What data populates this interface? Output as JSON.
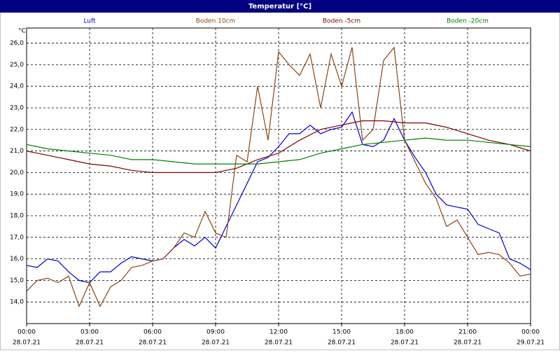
{
  "chart_data": {
    "type": "line",
    "title": "Temperatur [°C]",
    "y_unit": "°C",
    "x": [
      0,
      0.5,
      1,
      1.5,
      2,
      2.5,
      3,
      3.5,
      4,
      4.5,
      5,
      5.5,
      6,
      6.5,
      7,
      7.5,
      8,
      8.5,
      9,
      9.5,
      10,
      10.5,
      11,
      11.5,
      12,
      12.5,
      13,
      13.5,
      14,
      14.5,
      15,
      15.5,
      16,
      16.5,
      17,
      17.5,
      18,
      18.5,
      19,
      19.5,
      20,
      20.5,
      21,
      21.5,
      22,
      22.5,
      23,
      23.5,
      24
    ],
    "series": [
      {
        "name": "Luft",
        "color": "#0000cc",
        "values": [
          15.7,
          15.6,
          16.0,
          15.9,
          15.4,
          15.0,
          14.9,
          15.4,
          15.4,
          15.8,
          16.1,
          16.0,
          15.9,
          16.0,
          16.5,
          16.9,
          16.6,
          17.0,
          16.5,
          17.5,
          18.5,
          19.5,
          20.5,
          20.7,
          21.2,
          21.8,
          21.8,
          22.2,
          21.8,
          22.0,
          22.1,
          22.8,
          21.3,
          21.2,
          21.5,
          22.5,
          21.5,
          20.7,
          20.0,
          19.0,
          18.5,
          18.4,
          18.3,
          17.6,
          17.4,
          17.2,
          16.0,
          15.8,
          15.5
        ]
      },
      {
        "name": "Boden 10cm",
        "color": "#8b4513",
        "values": [
          14.5,
          15.0,
          15.1,
          14.9,
          15.2,
          13.8,
          14.9,
          13.8,
          14.7,
          15.0,
          15.6,
          15.7,
          15.9,
          16.0,
          16.5,
          17.2,
          17.0,
          18.2,
          17.2,
          17.0,
          20.8,
          20.5,
          24.0,
          21.5,
          25.6,
          25.0,
          24.5,
          25.5,
          23.0,
          25.5,
          24.0,
          25.8,
          21.5,
          22.0,
          25.2,
          25.8,
          21.5,
          20.5,
          19.5,
          18.8,
          17.5,
          17.8,
          17.0,
          16.2,
          16.3,
          16.2,
          15.8,
          15.2,
          15.3
        ]
      },
      {
        "name": "Boden -5cm",
        "color": "#800000",
        "values": [
          21.0,
          20.9,
          20.8,
          20.7,
          20.6,
          20.5,
          20.4,
          20.35,
          20.3,
          20.2,
          20.1,
          20.05,
          20.0,
          20.0,
          20.0,
          20.0,
          20.0,
          20.0,
          20.0,
          20.1,
          20.2,
          20.4,
          20.6,
          20.75,
          20.9,
          21.2,
          21.5,
          21.75,
          22.0,
          22.1,
          22.2,
          22.3,
          22.4,
          22.4,
          22.4,
          22.35,
          22.3,
          22.3,
          22.3,
          22.2,
          22.1,
          21.95,
          21.8,
          21.65,
          21.5,
          21.4,
          21.3,
          21.15,
          21.0
        ]
      },
      {
        "name": "Boden -20cm",
        "color": "#008000",
        "values": [
          21.3,
          21.2,
          21.1,
          21.05,
          21.0,
          20.95,
          20.9,
          20.85,
          20.8,
          20.7,
          20.6,
          20.6,
          20.6,
          20.55,
          20.5,
          20.45,
          20.4,
          20.4,
          20.4,
          20.4,
          20.4,
          20.4,
          20.4,
          20.45,
          20.5,
          20.55,
          20.6,
          20.75,
          20.9,
          21.0,
          21.1,
          21.2,
          21.3,
          21.35,
          21.4,
          21.45,
          21.5,
          21.55,
          21.6,
          21.55,
          21.5,
          21.5,
          21.5,
          21.45,
          21.4,
          21.35,
          21.3,
          21.25,
          21.2
        ]
      }
    ],
    "xlim": [
      0,
      24
    ],
    "xticks": [
      {
        "value": 0,
        "label": "00:00"
      },
      {
        "value": 3,
        "label": "03:00"
      },
      {
        "value": 6,
        "label": "06:00"
      },
      {
        "value": 9,
        "label": "09:00"
      },
      {
        "value": 12,
        "label": "12:00"
      },
      {
        "value": 15,
        "label": "15:00"
      },
      {
        "value": 18,
        "label": "18:00"
      },
      {
        "value": 21,
        "label": "21:00"
      },
      {
        "value": 24,
        "label": "00:00"
      }
    ],
    "xtick_dates": [
      "28.07.21",
      "28.07.21",
      "28.07.21",
      "28.07.21",
      "28.07.21",
      "28.07.21",
      "28.07.21",
      "28.07.21",
      "29.07.21"
    ],
    "ylim": [
      13.0,
      26.7
    ],
    "yticks": [
      {
        "value": 14,
        "label": "14,0"
      },
      {
        "value": 15,
        "label": "15,0"
      },
      {
        "value": 16,
        "label": "16,0"
      },
      {
        "value": 17,
        "label": "17,0"
      },
      {
        "value": 18,
        "label": "18,0"
      },
      {
        "value": 19,
        "label": "19,0"
      },
      {
        "value": 20,
        "label": "20,0"
      },
      {
        "value": 21,
        "label": "21,0"
      },
      {
        "value": 22,
        "label": "22,0"
      },
      {
        "value": 23,
        "label": "23,0"
      },
      {
        "value": 24,
        "label": "24,0"
      },
      {
        "value": 25,
        "label": "25,0"
      },
      {
        "value": 26,
        "label": "26,0"
      }
    ],
    "grid": true
  }
}
